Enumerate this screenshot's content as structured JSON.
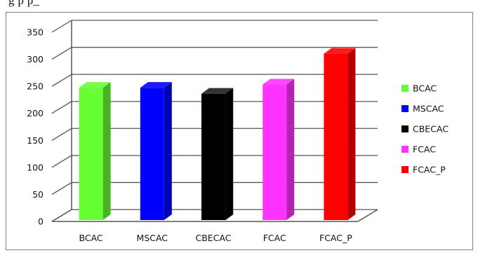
{
  "caption_fragment": "g                                                                   p         p_",
  "chart_data": {
    "type": "bar",
    "title": "",
    "xlabel": "",
    "ylabel": "",
    "categories": [
      "BCAC",
      "MSCAC",
      "CBECAC",
      "FCAC",
      "FCAC_P"
    ],
    "values": [
      237,
      237,
      226,
      243,
      300
    ],
    "ylim": [
      0,
      350
    ],
    "yticks": [
      0,
      50,
      100,
      150,
      200,
      250,
      300,
      350
    ],
    "grid": true,
    "three_d": true,
    "legend": {
      "placement": "right",
      "entries": [
        "BCAC",
        "MSCAC",
        "CBECAC",
        "FCAC",
        "FCAC_P"
      ]
    },
    "colors": {
      "BCAC": "#66ff33",
      "MSCAC": "#0000ff",
      "CBECAC": "#000000",
      "FCAC": "#ff33ff",
      "FCAC_P": "#ff0000"
    }
  }
}
